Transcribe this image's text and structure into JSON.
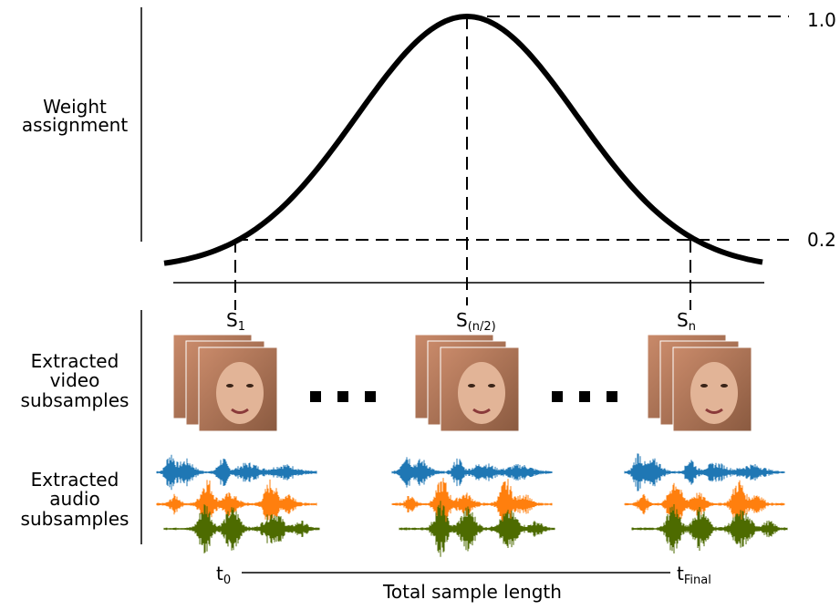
{
  "labels": {
    "weight": [
      "Weight",
      "assignment"
    ],
    "video": [
      "Extracted",
      "video",
      "subsamples"
    ],
    "audio": [
      "Extracted",
      "audio",
      "subsamples"
    ]
  },
  "levels": {
    "top": "1.0",
    "low": "0.2"
  },
  "samples": [
    {
      "base": "S",
      "sub": "1"
    },
    {
      "base": "S",
      "sub": "(n/2)"
    },
    {
      "base": "S",
      "sub": "n"
    }
  ],
  "time": {
    "start": {
      "base": "t",
      "sub": "0"
    },
    "end": {
      "base": "t",
      "sub": "Final"
    },
    "caption": "Total sample length"
  }
}
